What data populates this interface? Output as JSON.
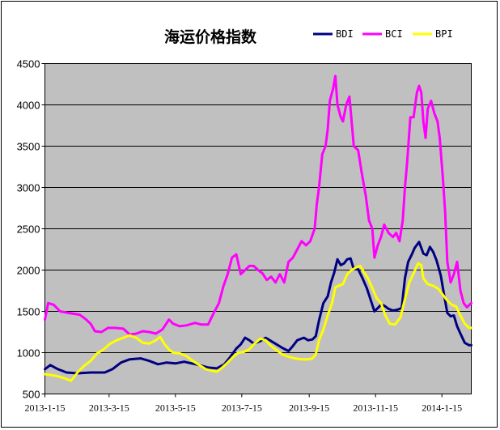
{
  "chart_data": {
    "type": "line",
    "title": "海运价格指数",
    "ylim": [
      500,
      4500
    ],
    "yticks": [
      500,
      1000,
      1500,
      2000,
      2500,
      3000,
      3500,
      4000,
      4500
    ],
    "xlim": [
      0,
      392
    ],
    "xticks": [
      {
        "label": "2013-1-15",
        "pos": 0
      },
      {
        "label": "2013-3-15",
        "pos": 59
      },
      {
        "label": "2013-5-15",
        "pos": 120
      },
      {
        "label": "2013-7-15",
        "pos": 181
      },
      {
        "label": "2013-9-15",
        "pos": 243
      },
      {
        "label": "2013-11-15",
        "pos": 304
      },
      {
        "label": "2014-1-15",
        "pos": 365
      }
    ],
    "grid": true,
    "legend_position": "top-right",
    "series": [
      {
        "name": "BDI",
        "color": "#000080",
        "points": [
          [
            0,
            800
          ],
          [
            5,
            850
          ],
          [
            12,
            800
          ],
          [
            20,
            760
          ],
          [
            30,
            750
          ],
          [
            42,
            760
          ],
          [
            55,
            760
          ],
          [
            62,
            800
          ],
          [
            70,
            880
          ],
          [
            78,
            920
          ],
          [
            88,
            930
          ],
          [
            96,
            900
          ],
          [
            104,
            860
          ],
          [
            112,
            880
          ],
          [
            120,
            870
          ],
          [
            128,
            890
          ],
          [
            135,
            870
          ],
          [
            142,
            850
          ],
          [
            150,
            820
          ],
          [
            158,
            810
          ],
          [
            165,
            860
          ],
          [
            170,
            940
          ],
          [
            176,
            1050
          ],
          [
            180,
            1100
          ],
          [
            184,
            1180
          ],
          [
            188,
            1150
          ],
          [
            192,
            1110
          ],
          [
            198,
            1140
          ],
          [
            203,
            1180
          ],
          [
            208,
            1140
          ],
          [
            213,
            1100
          ],
          [
            218,
            1060
          ],
          [
            224,
            1020
          ],
          [
            228,
            1080
          ],
          [
            232,
            1150
          ],
          [
            238,
            1180
          ],
          [
            242,
            1150
          ],
          [
            246,
            1160
          ],
          [
            249,
            1200
          ],
          [
            252,
            1390
          ],
          [
            256,
            1600
          ],
          [
            260,
            1680
          ],
          [
            263,
            1850
          ],
          [
            266,
            1970
          ],
          [
            269,
            2130
          ],
          [
            272,
            2060
          ],
          [
            275,
            2080
          ],
          [
            278,
            2130
          ],
          [
            281,
            2140
          ],
          [
            284,
            2010
          ],
          [
            288,
            2010
          ],
          [
            292,
            1900
          ],
          [
            296,
            1780
          ],
          [
            300,
            1620
          ],
          [
            303,
            1500
          ],
          [
            306,
            1540
          ],
          [
            309,
            1580
          ],
          [
            312,
            1570
          ],
          [
            316,
            1530
          ],
          [
            320,
            1510
          ],
          [
            324,
            1520
          ],
          [
            328,
            1540
          ],
          [
            331,
            1900
          ],
          [
            334,
            2100
          ],
          [
            337,
            2180
          ],
          [
            340,
            2270
          ],
          [
            344,
            2340
          ],
          [
            348,
            2200
          ],
          [
            351,
            2180
          ],
          [
            354,
            2280
          ],
          [
            357,
            2220
          ],
          [
            360,
            2120
          ],
          [
            364,
            1930
          ],
          [
            367,
            1700
          ],
          [
            370,
            1480
          ],
          [
            373,
            1440
          ],
          [
            376,
            1450
          ],
          [
            379,
            1320
          ],
          [
            382,
            1230
          ],
          [
            386,
            1120
          ],
          [
            390,
            1090
          ],
          [
            392,
            1090
          ]
        ]
      },
      {
        "name": "BCI",
        "color": "#ff00ff",
        "points": [
          [
            0,
            1400
          ],
          [
            3,
            1600
          ],
          [
            8,
            1580
          ],
          [
            14,
            1500
          ],
          [
            22,
            1480
          ],
          [
            32,
            1460
          ],
          [
            38,
            1400
          ],
          [
            42,
            1350
          ],
          [
            46,
            1260
          ],
          [
            52,
            1250
          ],
          [
            58,
            1300
          ],
          [
            64,
            1300
          ],
          [
            72,
            1290
          ],
          [
            78,
            1220
          ],
          [
            84,
            1230
          ],
          [
            90,
            1260
          ],
          [
            96,
            1250
          ],
          [
            102,
            1230
          ],
          [
            108,
            1280
          ],
          [
            114,
            1400
          ],
          [
            118,
            1350
          ],
          [
            124,
            1320
          ],
          [
            130,
            1330
          ],
          [
            138,
            1360
          ],
          [
            144,
            1340
          ],
          [
            150,
            1340
          ],
          [
            156,
            1500
          ],
          [
            160,
            1600
          ],
          [
            164,
            1800
          ],
          [
            168,
            1950
          ],
          [
            172,
            2150
          ],
          [
            176,
            2190
          ],
          [
            180,
            1950
          ],
          [
            184,
            2000
          ],
          [
            188,
            2050
          ],
          [
            192,
            2050
          ],
          [
            196,
            2000
          ],
          [
            200,
            1960
          ],
          [
            204,
            1880
          ],
          [
            208,
            1920
          ],
          [
            212,
            1850
          ],
          [
            216,
            1950
          ],
          [
            220,
            1850
          ],
          [
            224,
            2100
          ],
          [
            228,
            2150
          ],
          [
            232,
            2250
          ],
          [
            236,
            2350
          ],
          [
            240,
            2300
          ],
          [
            244,
            2350
          ],
          [
            248,
            2500
          ],
          [
            250,
            2800
          ],
          [
            252,
            3000
          ],
          [
            255,
            3400
          ],
          [
            258,
            3500
          ],
          [
            260,
            3700
          ],
          [
            262,
            4050
          ],
          [
            265,
            4200
          ],
          [
            267,
            4350
          ],
          [
            269,
            4000
          ],
          [
            272,
            3850
          ],
          [
            274,
            3800
          ],
          [
            277,
            4000
          ],
          [
            280,
            4100
          ],
          [
            282,
            3800
          ],
          [
            284,
            3500
          ],
          [
            288,
            3450
          ],
          [
            291,
            3200
          ],
          [
            295,
            2900
          ],
          [
            298,
            2600
          ],
          [
            301,
            2500
          ],
          [
            303,
            2150
          ],
          [
            306,
            2300
          ],
          [
            309,
            2400
          ],
          [
            312,
            2550
          ],
          [
            316,
            2450
          ],
          [
            320,
            2400
          ],
          [
            323,
            2450
          ],
          [
            326,
            2350
          ],
          [
            329,
            2600
          ],
          [
            331,
            3000
          ],
          [
            333,
            3300
          ],
          [
            336,
            3850
          ],
          [
            339,
            3850
          ],
          [
            342,
            4150
          ],
          [
            344,
            4230
          ],
          [
            346,
            4150
          ],
          [
            348,
            3800
          ],
          [
            350,
            3600
          ],
          [
            352,
            3950
          ],
          [
            355,
            4050
          ],
          [
            358,
            3900
          ],
          [
            361,
            3800
          ],
          [
            363,
            3600
          ],
          [
            366,
            3100
          ],
          [
            368,
            2700
          ],
          [
            370,
            2100
          ],
          [
            373,
            1850
          ],
          [
            376,
            1950
          ],
          [
            379,
            2100
          ],
          [
            382,
            1750
          ],
          [
            385,
            1600
          ],
          [
            388,
            1550
          ],
          [
            392,
            1600
          ]
        ]
      },
      {
        "name": "BPI",
        "color": "#ffff00",
        "points": [
          [
            0,
            740
          ],
          [
            10,
            720
          ],
          [
            18,
            690
          ],
          [
            24,
            660
          ],
          [
            30,
            760
          ],
          [
            36,
            840
          ],
          [
            42,
            900
          ],
          [
            48,
            990
          ],
          [
            54,
            1040
          ],
          [
            60,
            1110
          ],
          [
            66,
            1150
          ],
          [
            72,
            1180
          ],
          [
            78,
            1210
          ],
          [
            84,
            1180
          ],
          [
            90,
            1120
          ],
          [
            96,
            1110
          ],
          [
            102,
            1150
          ],
          [
            106,
            1190
          ],
          [
            110,
            1100
          ],
          [
            114,
            1040
          ],
          [
            118,
            1000
          ],
          [
            124,
            990
          ],
          [
            130,
            960
          ],
          [
            136,
            900
          ],
          [
            142,
            850
          ],
          [
            148,
            800
          ],
          [
            154,
            780
          ],
          [
            158,
            770
          ],
          [
            163,
            820
          ],
          [
            168,
            880
          ],
          [
            173,
            950
          ],
          [
            178,
            1000
          ],
          [
            183,
            1010
          ],
          [
            188,
            1040
          ],
          [
            192,
            1100
          ],
          [
            198,
            1170
          ],
          [
            203,
            1150
          ],
          [
            208,
            1080
          ],
          [
            213,
            1030
          ],
          [
            218,
            980
          ],
          [
            224,
            950
          ],
          [
            230,
            930
          ],
          [
            236,
            920
          ],
          [
            242,
            920
          ],
          [
            246,
            930
          ],
          [
            249,
            980
          ],
          [
            252,
            1150
          ],
          [
            256,
            1280
          ],
          [
            260,
            1450
          ],
          [
            264,
            1600
          ],
          [
            267,
            1790
          ],
          [
            270,
            1810
          ],
          [
            274,
            1830
          ],
          [
            278,
            1950
          ],
          [
            282,
            2000
          ],
          [
            286,
            2030
          ],
          [
            290,
            2050
          ],
          [
            293,
            1980
          ],
          [
            297,
            1900
          ],
          [
            301,
            1780
          ],
          [
            305,
            1660
          ],
          [
            309,
            1600
          ],
          [
            313,
            1450
          ],
          [
            317,
            1350
          ],
          [
            322,
            1340
          ],
          [
            327,
            1430
          ],
          [
            331,
            1650
          ],
          [
            335,
            1850
          ],
          [
            339,
            1960
          ],
          [
            343,
            2080
          ],
          [
            346,
            2060
          ],
          [
            348,
            1900
          ],
          [
            352,
            1830
          ],
          [
            357,
            1810
          ],
          [
            362,
            1770
          ],
          [
            366,
            1700
          ],
          [
            370,
            1630
          ],
          [
            374,
            1580
          ],
          [
            378,
            1560
          ],
          [
            382,
            1450
          ],
          [
            386,
            1350
          ],
          [
            390,
            1300
          ],
          [
            392,
            1300
          ]
        ]
      }
    ]
  }
}
